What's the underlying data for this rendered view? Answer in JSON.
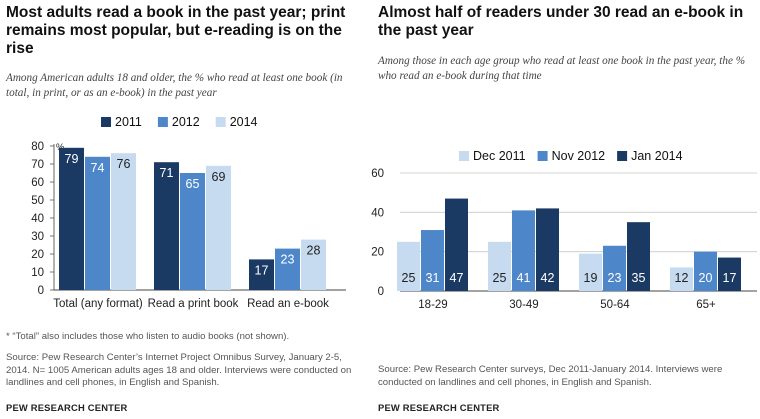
{
  "chart_data": [
    {
      "type": "bar",
      "title": "Most adults read a book in the past year; print remains most popular, but e-reading is on the rise",
      "subtitle": "Among American adults 18 and older, the % who read at least one book (in total, in print, or as an e-book) in the past year",
      "categories": [
        "Total (any format)",
        "Read a print book",
        "Read an e-book"
      ],
      "series": [
        {
          "name": "2011",
          "values": [
            79,
            71,
            17
          ],
          "color": "#1b3a63"
        },
        {
          "name": "2012",
          "values": [
            74,
            65,
            23
          ],
          "color": "#4e87c9"
        },
        {
          "name": "2014",
          "values": [
            76,
            69,
            28
          ],
          "color": "#c7dbf0"
        }
      ],
      "yticks": [
        "0",
        "10",
        "20",
        "30",
        "40",
        "50",
        "60",
        "70",
        "80"
      ],
      "ylim": [
        0,
        80
      ],
      "unit_label": "%",
      "grid": false,
      "legend": "top",
      "footnote": "* “Total” also includes those who listen to audio books (not shown).",
      "source": "Source: Pew Research Center’s Internet Project Omnibus Survey, January 2-5, 2014. N= 1005 American adults ages 18 and older. Interviews were conducted on landlines and cell phones, in English and Spanish.",
      "brand": "PEW RESEARCH CENTER"
    },
    {
      "type": "bar",
      "title": "Almost half of readers under 30 read an e-book in the past year",
      "subtitle": "Among those in each age group who read at least one book in the past year, the % who read an e-book during that time",
      "categories": [
        "18-29",
        "30-49",
        "50-64",
        "65+"
      ],
      "series": [
        {
          "name": "Dec 2011",
          "values": [
            25,
            25,
            19,
            12
          ],
          "color": "#c7dbf0"
        },
        {
          "name": "Nov 2012",
          "values": [
            31,
            41,
            23,
            20
          ],
          "color": "#4e87c9"
        },
        {
          "name": "Jan 2014",
          "values": [
            47,
            42,
            35,
            17
          ],
          "color": "#1b3a63"
        }
      ],
      "yticks": [
        "0",
        "20",
        "40",
        "60"
      ],
      "ylim": [
        0,
        60
      ],
      "grid": true,
      "legend": "top",
      "source": "Source: Pew Research Center surveys, Dec 2011-January 2014. Interviews were conducted on landlines and cell phones, in English and Spanish.",
      "brand": "PEW RESEARCH CENTER"
    }
  ]
}
